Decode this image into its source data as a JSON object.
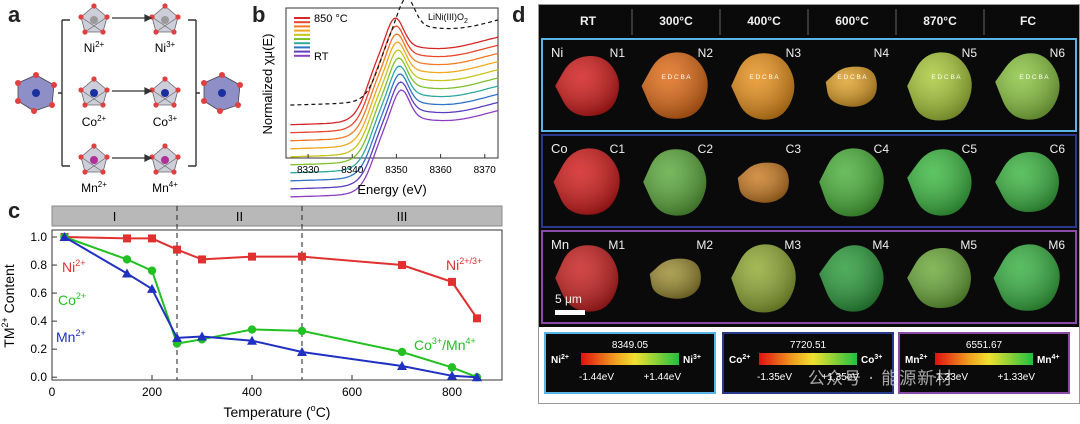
{
  "panel_labels": {
    "a": "a",
    "b": "b",
    "c": "c",
    "d": "d"
  },
  "panel_a": {
    "top": {
      "from": "Ni",
      "from_sup": "2+",
      "to": "Ni",
      "to_sup": "3+",
      "color": "#9a9a9a"
    },
    "middle": {
      "from": "Co",
      "from_sup": "2+",
      "to": "Co",
      "to_sup": "3+",
      "color": "#1a2fa0"
    },
    "bottom": {
      "from": "Mn",
      "from_sup": "2+",
      "to": "Mn",
      "to_sup": "4+",
      "color": "#b0309a"
    }
  },
  "chart_data": [
    {
      "panel": "b",
      "type": "line",
      "xlabel": "Energy (eV)",
      "ylabel": "Normalized χμ(E)",
      "xlim": [
        8325,
        8373
      ],
      "xticks": [
        8330,
        8340,
        8350,
        8360,
        8370
      ],
      "legend_top": "850 °C",
      "legend_bottom": "RT",
      "reference_label": "LiNi(III)O",
      "reference_sub": "2",
      "series_colors": [
        "#d62728",
        "#e8472b",
        "#f07a24",
        "#f2a71f",
        "#c8c21a",
        "#7fc02d",
        "#2fa8a0",
        "#2f74c8",
        "#5a3fc0",
        "#8b3fc0"
      ]
    },
    {
      "panel": "c",
      "type": "line",
      "xlabel": "Temperature (",
      "xlabel_deg": "o",
      "xlabel_end": "C)",
      "ylabel_pre": "TM",
      "ylabel_sup": "2+",
      "ylabel_post": " Content",
      "xlim": [
        0,
        900
      ],
      "ylim": [
        -0.02,
        1.05
      ],
      "xticks": [
        0,
        200,
        400,
        600,
        800
      ],
      "yticks": [
        0.0,
        0.2,
        0.4,
        0.6,
        0.8,
        1.0
      ],
      "regions": [
        {
          "label": "I",
          "from": 0,
          "to": 250
        },
        {
          "label": "II",
          "from": 250,
          "to": 500
        },
        {
          "label": "III",
          "from": 500,
          "to": 900
        }
      ],
      "dividers": [
        250,
        500
      ],
      "series": [
        {
          "name": "Ni2+",
          "color": "#e03030",
          "marker": "square",
          "x": [
            25,
            150,
            200,
            250,
            300,
            400,
            500,
            700,
            800,
            850
          ],
          "y": [
            1.0,
            0.99,
            0.99,
            0.91,
            0.84,
            0.86,
            0.86,
            0.8,
            0.68,
            0.42
          ]
        },
        {
          "name": "Co2+",
          "color": "#22c022",
          "marker": "circle",
          "x": [
            25,
            150,
            200,
            250,
            300,
            400,
            500,
            700,
            800,
            850
          ],
          "y": [
            1.0,
            0.84,
            0.76,
            0.24,
            0.27,
            0.34,
            0.33,
            0.18,
            0.07,
            0.0
          ]
        },
        {
          "name": "Mn2+",
          "color": "#2030c0",
          "marker": "triangle",
          "x": [
            25,
            150,
            200,
            250,
            300,
            400,
            500,
            700,
            800,
            850
          ],
          "y": [
            1.0,
            0.74,
            0.63,
            0.28,
            0.29,
            0.26,
            0.18,
            0.08,
            0.01,
            0.0
          ]
        }
      ],
      "annotations": {
        "ni": {
          "text": "Ni",
          "sup": "2+",
          "color": "#e03030"
        },
        "co": {
          "text": "Co",
          "sup": "2+",
          "color": "#22c022"
        },
        "mn": {
          "text": "Mn",
          "sup": "2+",
          "color": "#2030c0"
        },
        "ni_right": {
          "text": "Ni",
          "sup": "2+/3+",
          "color": "#e03030"
        },
        "co_right_a": {
          "text": "Co",
          "sup": "3+",
          "color": "#22c022"
        },
        "co_right_b": {
          "text": "/Mn",
          "sup": "4+",
          "color": "#22c022"
        }
      }
    }
  ],
  "panel_d": {
    "headers": [
      "RT",
      "300°C",
      "400°C",
      "600°C",
      "870°C",
      "FC"
    ],
    "rows": [
      {
        "element": "Ni",
        "frame": "#5ab4e6",
        "labels": [
          "N1",
          "N2",
          "N3",
          "N4",
          "N5",
          "N6"
        ],
        "colors": [
          "#d21a1a",
          "#e06a14",
          "#e8901a",
          "#e0a028",
          "#a8c838",
          "#8ac440"
        ]
      },
      {
        "element": "Co",
        "frame": "#2a3a8a",
        "labels": [
          "C1",
          "C2",
          "C3",
          "C4",
          "C5",
          "C6"
        ],
        "colors": [
          "#d21a1a",
          "#5aa83a",
          "#c87a22",
          "#48b038",
          "#3ab840",
          "#3ab440"
        ]
      },
      {
        "element": "Mn",
        "frame": "#8a4aa8",
        "labels": [
          "M1",
          "M2",
          "M3",
          "M4",
          "M5",
          "M6"
        ],
        "colors": [
          "#c81e1e",
          "#9a8a30",
          "#90a832",
          "#2a9a3a",
          "#6aa838",
          "#36b040"
        ]
      }
    ],
    "ticks_text": "E D C B A",
    "scale_bar": "5 μm",
    "colorbars": [
      {
        "value": "8349.05",
        "left": "Ni",
        "left_sup": "2+",
        "right": "Ni",
        "right_sup": "3+",
        "min": "-1.44eV",
        "max": "+1.44eV",
        "frame": "#5ab4e6"
      },
      {
        "value": "7720.51",
        "left": "Co",
        "left_sup": "2+",
        "right": "Co",
        "right_sup": "3+",
        "min": "-1.35eV",
        "max": "+1.35eV",
        "frame": "#2a3a8a"
      },
      {
        "value": "6551.67",
        "left": "Mn",
        "left_sup": "2+",
        "right": "Mn",
        "right_sup": "4+",
        "min": "-1.33eV",
        "max": "+1.33eV",
        "frame": "#8a4aa8"
      }
    ],
    "watermark": "公众号 · 能源新材"
  }
}
